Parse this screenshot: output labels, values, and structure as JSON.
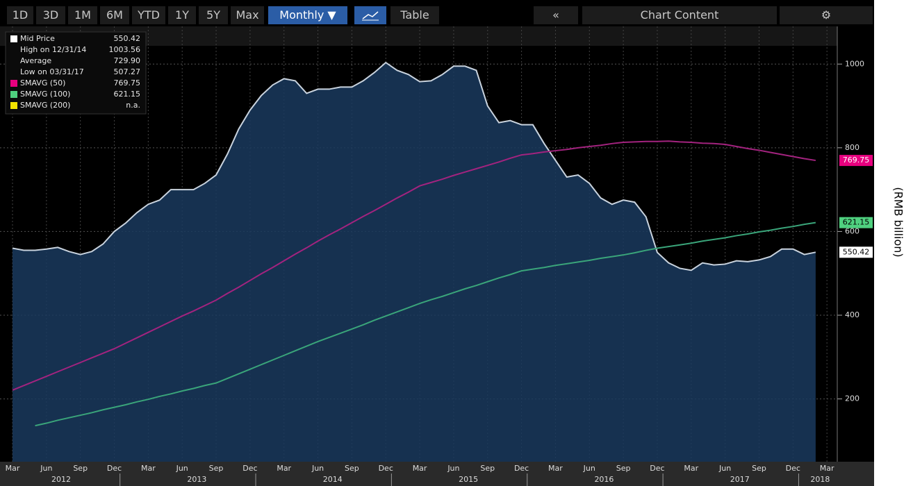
{
  "toolbar": {
    "ranges": [
      "1D",
      "3D",
      "1M",
      "6M",
      "YTD",
      "1Y",
      "5Y",
      "Max"
    ],
    "frequency": "Monthly ▼",
    "table": "Table",
    "collapse": "«",
    "content": "Chart Content",
    "settings": "⚙"
  },
  "chart_data": {
    "type": "line",
    "y_axis_label": "(RMB billion)",
    "categories": [
      "Mar",
      null,
      null,
      "Jun",
      null,
      null,
      "Sep",
      null,
      null,
      "Dec",
      null,
      null,
      "Mar",
      null,
      null,
      "Jun",
      null,
      null,
      "Sep",
      null,
      null,
      "Dec",
      null,
      null,
      "Mar",
      null,
      null,
      "Jun",
      null,
      null,
      "Sep",
      null,
      null,
      "Dec",
      null,
      null,
      "Mar",
      null,
      null,
      "Jun",
      null,
      null,
      "Sep",
      null,
      null,
      "Dec",
      null,
      null,
      "Mar",
      null,
      null,
      "Jun",
      null,
      null,
      "Sep",
      null,
      null,
      "Dec",
      null,
      null,
      "Mar",
      null,
      null,
      "Jun",
      null,
      null,
      "Sep",
      null,
      null,
      "Dec",
      null,
      null,
      "Mar"
    ],
    "years": [
      "2012",
      "2013",
      "2014",
      "2015",
      "2016",
      "2017",
      "2018"
    ],
    "series": [
      {
        "name": "Mid Price",
        "color": "#c9d3de",
        "fill": "#1a3a5e",
        "values": [
          560,
          555,
          555,
          558,
          562,
          552,
          545,
          552,
          570,
          600,
          620,
          645,
          665,
          675,
          700,
          700,
          700,
          715,
          735,
          785,
          845,
          890,
          925,
          950,
          965,
          960,
          930,
          940,
          940,
          945,
          945,
          960,
          980,
          1003.56,
          985,
          975,
          958,
          960,
          975,
          995,
          995,
          985,
          900,
          860,
          865,
          855,
          855,
          810,
          770,
          730,
          735,
          715,
          680,
          665,
          675,
          670,
          635,
          550,
          525,
          512,
          507.27,
          525,
          520,
          522,
          530,
          528,
          532,
          540,
          558,
          558,
          545,
          550.42,
          null
        ]
      },
      {
        "name": "SMAVG (50)",
        "color": "#a3237f",
        "tag_color": "#e8007f",
        "values": [
          221,
          232,
          243,
          254,
          265,
          276,
          287,
          298,
          309,
          320,
          333,
          346,
          359,
          372,
          385,
          398,
          410,
          423,
          436,
          452,
          467,
          483,
          499,
          514,
          530,
          546,
          561,
          577,
          592,
          606,
          621,
          636,
          650,
          665,
          680,
          694,
          709,
          717,
          725,
          734,
          742,
          750,
          758,
          766,
          775,
          783,
          786,
          790,
          793,
          796,
          800,
          803,
          806,
          810,
          813,
          814,
          815,
          815,
          816,
          814,
          813,
          811,
          810,
          808,
          803,
          798,
          794,
          789,
          784,
          779,
          774,
          769.75,
          null
        ]
      },
      {
        "name": "SMAVG (100)",
        "color": "#3aa57a",
        "tag_color": "#4fd07f",
        "values": [
          null,
          null,
          136,
          142,
          149,
          155,
          161,
          167,
          174,
          180,
          186,
          193,
          199,
          206,
          212,
          219,
          225,
          232,
          238,
          249,
          260,
          271,
          282,
          293,
          304,
          315,
          326,
          337,
          347,
          357,
          367,
          377,
          388,
          398,
          408,
          418,
          428,
          437,
          445,
          454,
          463,
          471,
          480,
          489,
          497,
          506,
          510,
          514,
          519,
          523,
          527,
          531,
          536,
          540,
          544,
          549,
          555,
          560,
          564,
          568,
          572,
          577,
          581,
          585,
          590,
          594,
          599,
          603,
          608,
          612,
          617,
          621.15,
          null
        ]
      }
    ],
    "legend_stats": [
      {
        "label": "High on 12/31/14",
        "value": "1003.56"
      },
      {
        "label": "Average",
        "value": "729.90"
      },
      {
        "label": "Low on 03/31/17",
        "value": "507.27"
      }
    ],
    "unavailable_series": {
      "name": "SMAVG (200)",
      "color": "#f2e200",
      "value_label": "n.a."
    },
    "ylim": [
      50,
      1090
    ],
    "yticks": [
      200,
      400,
      600,
      800,
      1000
    ],
    "grid": true
  }
}
